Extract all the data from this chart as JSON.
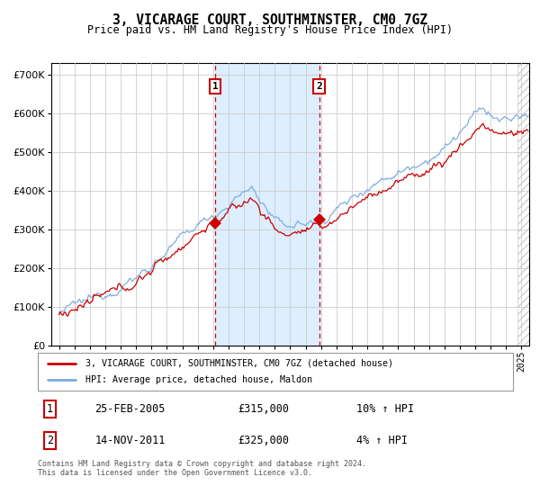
{
  "title": "3, VICARAGE COURT, SOUTHMINSTER, CM0 7GZ",
  "subtitle": "Price paid vs. HM Land Registry's House Price Index (HPI)",
  "ytick_vals": [
    0,
    100000,
    200000,
    300000,
    400000,
    500000,
    600000,
    700000
  ],
  "ylim": [
    0,
    730000
  ],
  "xlim": [
    1994.5,
    2025.5
  ],
  "sale1_date": 2005.12,
  "sale1_price": 315000,
  "sale2_date": 2011.87,
  "sale2_price": 325000,
  "sale1_text": "25-FEB-2005",
  "sale1_amount": "£315,000",
  "sale1_hpi": "10% ↑ HPI",
  "sale2_text": "14-NOV-2011",
  "sale2_amount": "£325,000",
  "sale2_hpi": "4% ↑ HPI",
  "legend_line1": "3, VICARAGE COURT, SOUTHMINSTER, CM0 7GZ (detached house)",
  "legend_line2": "HPI: Average price, detached house, Maldon",
  "footer": "Contains HM Land Registry data © Crown copyright and database right 2024.\nThis data is licensed under the Open Government Licence v3.0.",
  "hpi_color": "#7aaadd",
  "price_color": "#cc0000",
  "shade_color": "#ddeeff",
  "grid_color": "#cccccc",
  "bg_color": "#ffffff"
}
